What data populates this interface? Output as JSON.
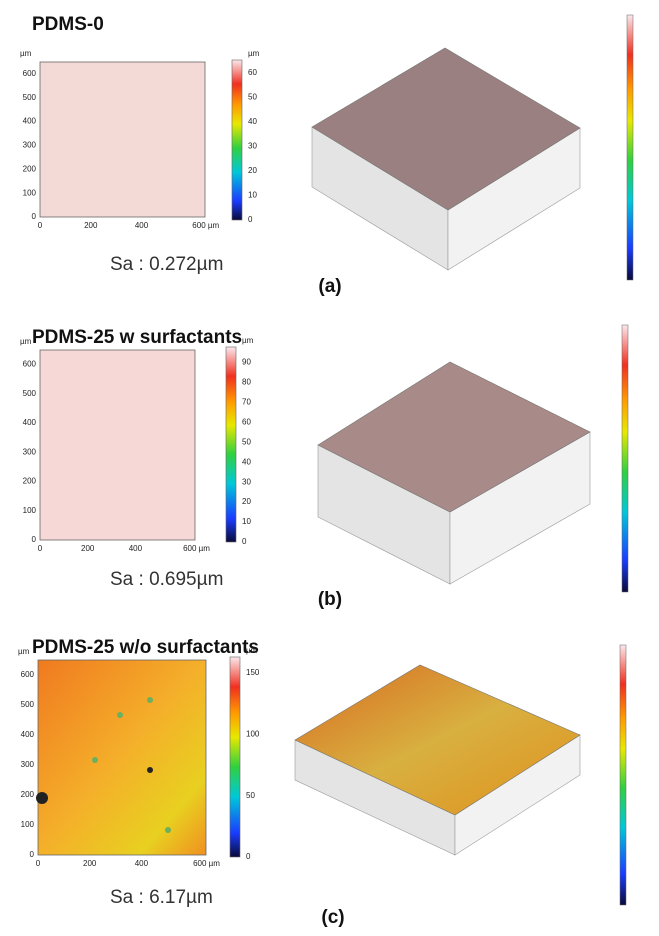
{
  "panels": [
    {
      "title": "PDMS-0",
      "sa": "Sa : 0.272µm",
      "label": "(a)",
      "map": {
        "unit": "µm",
        "xticks": [
          "0",
          "200",
          "400",
          "600 µm"
        ],
        "yticks": [
          "0",
          "100",
          "200",
          "300",
          "400",
          "500",
          "600"
        ]
      },
      "colorbar": {
        "unit": "µm",
        "ticks": [
          "0",
          "10",
          "20",
          "30",
          "40",
          "50",
          "60"
        ]
      }
    },
    {
      "title": "PDMS-25 w surfactants",
      "sa": "Sa : 0.695µm",
      "label": "(b)",
      "map": {
        "unit": "µm",
        "xticks": [
          "0",
          "200",
          "400",
          "600 µm"
        ],
        "yticks": [
          "0",
          "100",
          "200",
          "300",
          "400",
          "500",
          "600"
        ]
      },
      "colorbar": {
        "unit": "µm",
        "ticks": [
          "0",
          "10",
          "20",
          "30",
          "40",
          "50",
          "60",
          "70",
          "80",
          "90"
        ]
      }
    },
    {
      "title": "PDMS-25 w/o surfactants",
      "sa": "Sa : 6.17µm",
      "label": "(c)",
      "map": {
        "unit": "µm",
        "xticks": [
          "0",
          "200",
          "400",
          "600 µm"
        ],
        "yticks": [
          "0",
          "100",
          "200",
          "300",
          "400",
          "500",
          "600"
        ]
      },
      "colorbar": {
        "unit": "µm",
        "ticks": [
          "0",
          "50",
          "100",
          "150"
        ]
      }
    }
  ]
}
